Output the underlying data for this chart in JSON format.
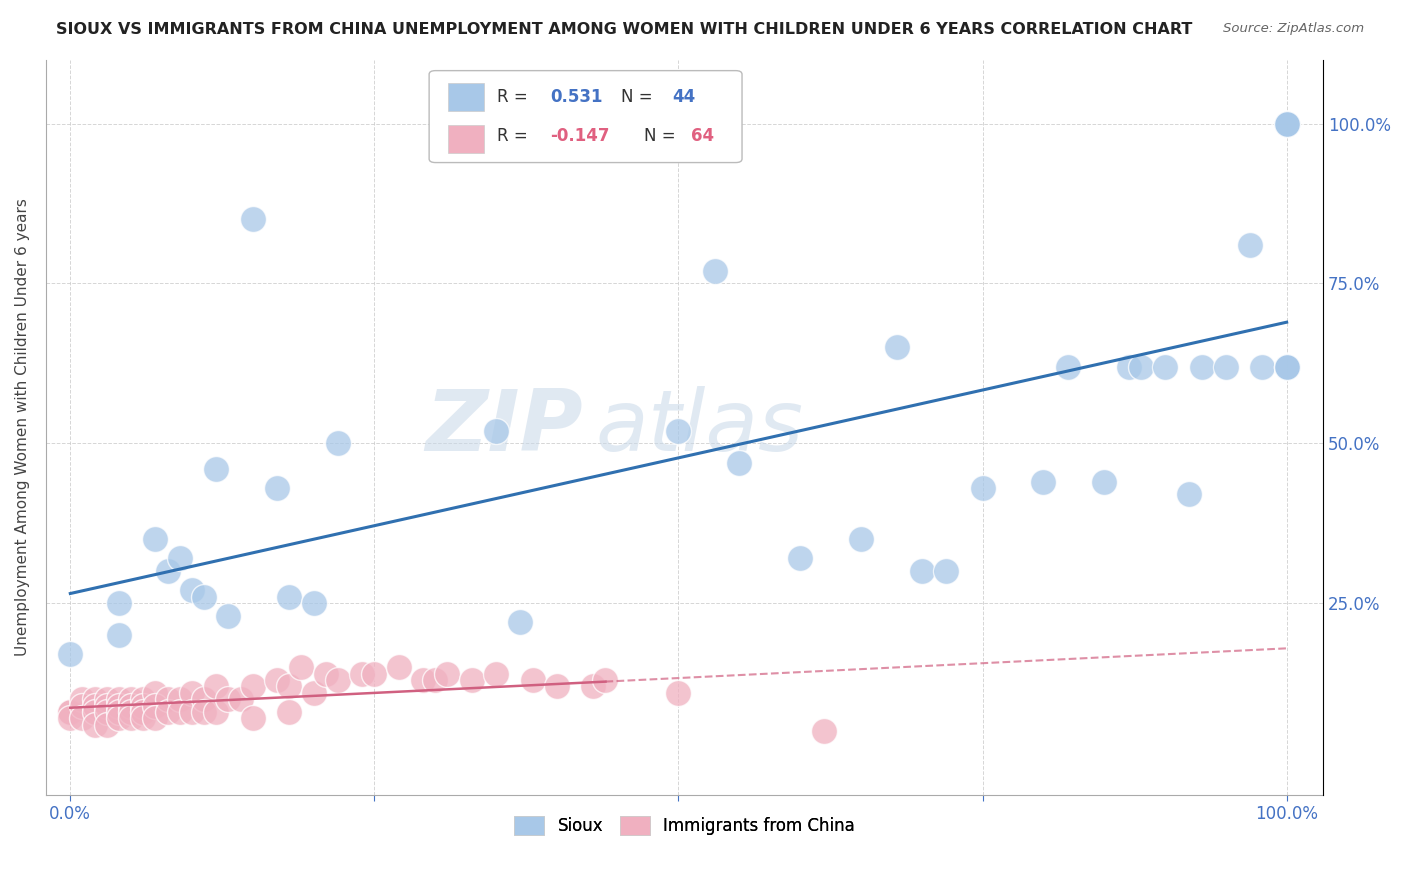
{
  "title": "SIOUX VS IMMIGRANTS FROM CHINA UNEMPLOYMENT AMONG WOMEN WITH CHILDREN UNDER 6 YEARS CORRELATION CHART",
  "source": "Source: ZipAtlas.com",
  "ylabel": "Unemployment Among Women with Children Under 6 years",
  "legend_label1": "Sioux",
  "legend_label2": "Immigrants from China",
  "R1": "0.531",
  "N1": "44",
  "R2": "-0.147",
  "N2": "64",
  "watermark_line1": "ZIP",
  "watermark_line2": "atlas",
  "bg_color": "#ffffff",
  "sioux_color": "#a8c8e8",
  "china_color": "#f0b0c0",
  "line1_color": "#3070b0",
  "line2_color": "#d06080",
  "sioux_points_x": [
    0.0,
    0.04,
    0.04,
    0.07,
    0.08,
    0.09,
    0.1,
    0.11,
    0.12,
    0.13,
    0.15,
    0.17,
    0.18,
    0.2,
    0.22,
    0.35,
    0.37,
    0.5,
    0.53,
    0.55,
    0.6,
    0.65,
    0.68,
    0.7,
    0.72,
    0.75,
    0.8,
    0.82,
    0.85,
    0.87,
    0.88,
    0.9,
    0.92,
    0.93,
    0.95,
    0.97,
    0.98,
    1.0,
    1.0,
    1.0,
    1.0,
    1.0,
    1.0,
    1.0
  ],
  "sioux_points_y": [
    0.17,
    0.25,
    0.2,
    0.35,
    0.3,
    0.32,
    0.27,
    0.26,
    0.46,
    0.23,
    0.85,
    0.43,
    0.26,
    0.25,
    0.5,
    0.52,
    0.22,
    0.52,
    0.77,
    0.47,
    0.32,
    0.35,
    0.65,
    0.3,
    0.3,
    0.43,
    0.44,
    0.62,
    0.44,
    0.62,
    0.62,
    0.62,
    0.42,
    0.62,
    0.62,
    0.81,
    0.62,
    0.62,
    0.62,
    0.62,
    1.0,
    1.0,
    1.0,
    1.0
  ],
  "china_points_x": [
    0.0,
    0.0,
    0.0,
    0.01,
    0.01,
    0.01,
    0.02,
    0.02,
    0.02,
    0.02,
    0.03,
    0.03,
    0.03,
    0.03,
    0.04,
    0.04,
    0.04,
    0.04,
    0.05,
    0.05,
    0.05,
    0.05,
    0.06,
    0.06,
    0.06,
    0.06,
    0.07,
    0.07,
    0.07,
    0.08,
    0.08,
    0.09,
    0.09,
    0.1,
    0.1,
    0.11,
    0.11,
    0.12,
    0.12,
    0.13,
    0.14,
    0.15,
    0.15,
    0.17,
    0.18,
    0.18,
    0.19,
    0.2,
    0.21,
    0.22,
    0.24,
    0.25,
    0.27,
    0.29,
    0.3,
    0.31,
    0.33,
    0.35,
    0.38,
    0.4,
    0.43,
    0.44,
    0.5,
    0.62
  ],
  "china_points_y": [
    0.08,
    0.08,
    0.07,
    0.1,
    0.09,
    0.07,
    0.1,
    0.09,
    0.08,
    0.06,
    0.1,
    0.09,
    0.08,
    0.06,
    0.1,
    0.09,
    0.08,
    0.07,
    0.1,
    0.09,
    0.08,
    0.07,
    0.1,
    0.09,
    0.08,
    0.07,
    0.11,
    0.09,
    0.07,
    0.1,
    0.08,
    0.1,
    0.08,
    0.11,
    0.08,
    0.1,
    0.08,
    0.12,
    0.08,
    0.1,
    0.1,
    0.12,
    0.07,
    0.13,
    0.12,
    0.08,
    0.15,
    0.11,
    0.14,
    0.13,
    0.14,
    0.14,
    0.15,
    0.13,
    0.13,
    0.14,
    0.13,
    0.14,
    0.13,
    0.12,
    0.12,
    0.13,
    0.11,
    0.05
  ]
}
